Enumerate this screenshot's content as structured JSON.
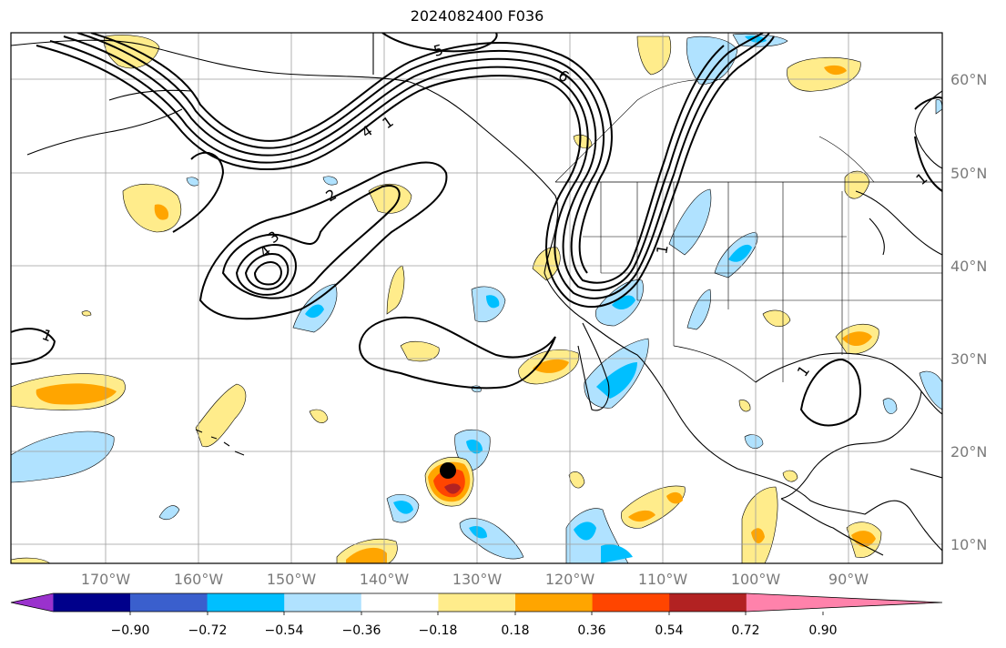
{
  "title": "2024082400 F036",
  "lat_labels": [
    "60°N",
    "50°N",
    "40°N",
    "30°N",
    "20°N",
    "10°N"
  ],
  "lon_labels": [
    "170°W",
    "160°W",
    "150°W",
    "140°W",
    "130°W",
    "120°W",
    "110°W",
    "100°W",
    "90°W"
  ],
  "contour_labels": [
    "5",
    "6",
    "4",
    "1",
    "2",
    "3",
    "4",
    "1",
    "1",
    "1",
    "1"
  ],
  "colorbar": {
    "tick_labels": [
      "−0.90",
      "−0.72",
      "−0.54",
      "−0.36",
      "−0.18",
      "0.18",
      "0.36",
      "0.54",
      "0.72",
      "0.90"
    ],
    "colors": [
      "#9a32cd",
      "#00008b",
      "#3a5fcd",
      "#00bfff",
      "#b0e2ff",
      "#ffffff",
      "#ffec8b",
      "#ffa500",
      "#ff4500",
      "#b22222",
      "#ff82ab"
    ]
  },
  "marker": {
    "name": "storm-center-marker",
    "color": "#000000"
  }
}
